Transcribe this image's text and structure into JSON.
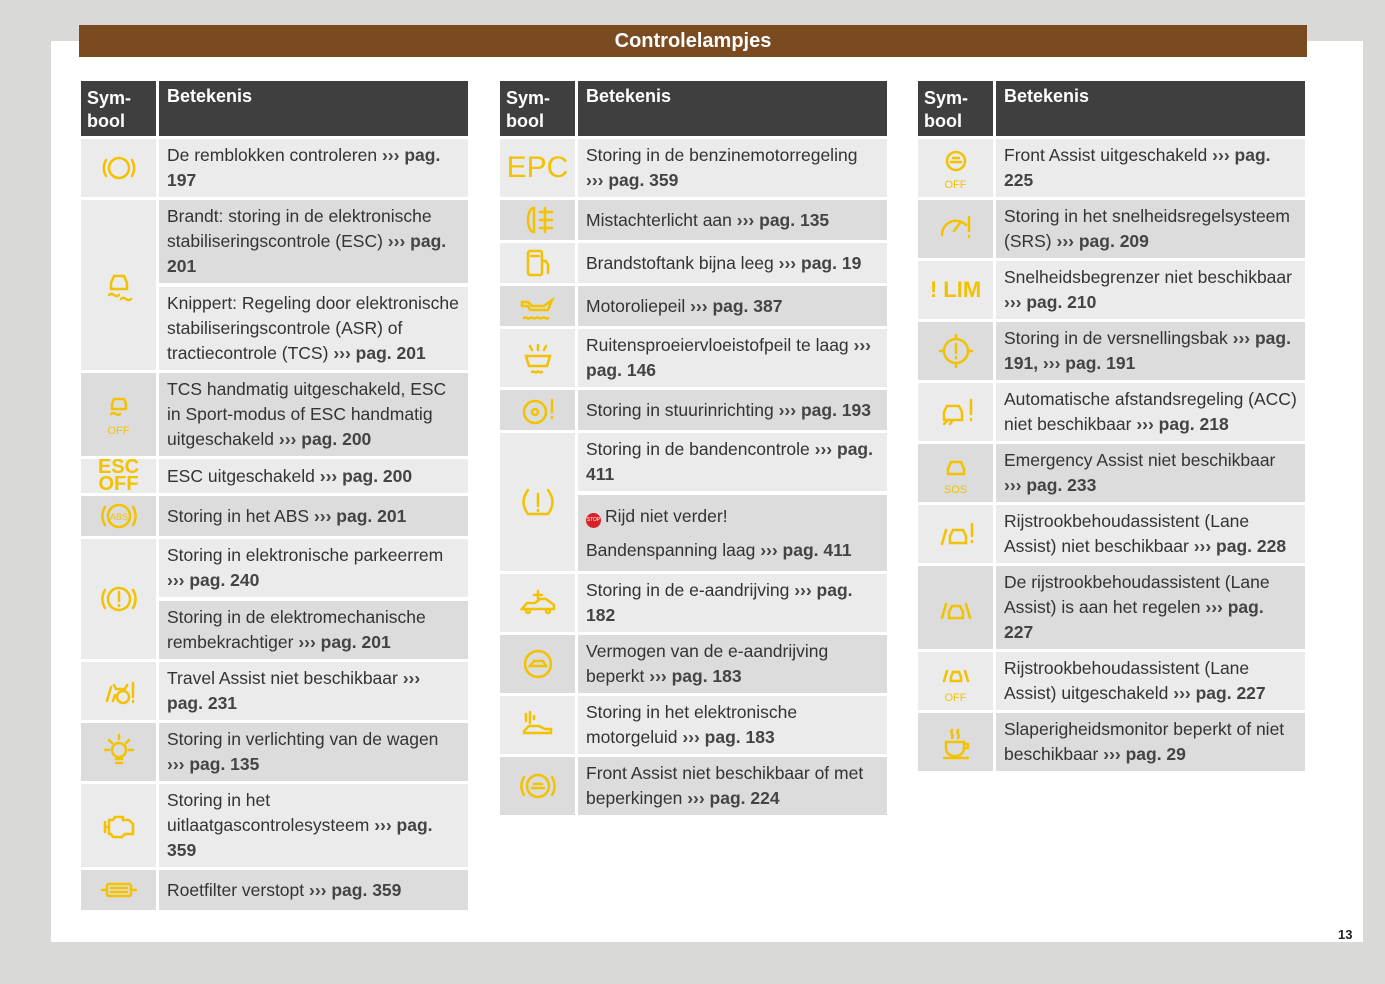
{
  "title": "Controlelampjes",
  "page_number": "13",
  "header": {
    "symbol": "Sym-\nbool",
    "meaning": "Betekenis"
  },
  "icon_color": "#f2c200",
  "columns": [
    [
      {
        "icon": "brake-pads-icon",
        "entries": [
          {
            "text": "De remblokken controleren",
            "ref": "››› pag. 197"
          }
        ]
      },
      {
        "icon": "esc-skid-icon",
        "entries": [
          {
            "text": "Brandt: storing in de elektronische stabiliseringscontrole (ESC)",
            "ref": "››› pag. 201"
          },
          {
            "text": "Knippert: Regeling door elektronische stabiliseringscontrole (ASR) of tractiecontrole (TCS)",
            "ref": "››› pag. 201"
          }
        ]
      },
      {
        "icon": "esc-skid-off-icon",
        "label": "OFF",
        "entries": [
          {
            "text": "TCS handmatig uitgeschakeld, ESC in Sport-modus of ESC handmatig uitgeschakeld",
            "ref": "››› pag. 200"
          }
        ]
      },
      {
        "icon": "esc-off-icon",
        "label": "ESC OFF",
        "entries": [
          {
            "text": "ESC uitgeschakeld",
            "ref": "››› pag. 200"
          }
        ]
      },
      {
        "icon": "abs-icon",
        "label": "ABS",
        "entries": [
          {
            "text": "Storing in het ABS",
            "ref": "››› pag. 201"
          }
        ]
      },
      {
        "icon": "parking-brake-icon",
        "entries": [
          {
            "text": "Storing in elektronische parkeerrem",
            "ref": "››› pag. 240"
          },
          {
            "text": "Storing in de elektromechanische rembekrachtiger",
            "ref": "››› pag. 201"
          }
        ]
      },
      {
        "icon": "travel-assist-icon",
        "entries": [
          {
            "text": "Travel Assist niet beschikbaar",
            "ref": "››› pag. 231"
          }
        ]
      },
      {
        "icon": "bulb-warning-icon",
        "entries": [
          {
            "text": "Storing in verlichting van de wagen",
            "ref": "››› pag. 135"
          }
        ]
      },
      {
        "icon": "engine-icon",
        "entries": [
          {
            "text": "Storing in het uitlaatgascontrolesysteem",
            "ref": "››› pag. 359"
          }
        ]
      },
      {
        "icon": "particulate-filter-icon",
        "entries": [
          {
            "text": "Roetfilter verstopt",
            "ref": "››› pag. 359"
          }
        ]
      }
    ],
    [
      {
        "icon": "epc-icon",
        "label": "EPC",
        "entries": [
          {
            "text": "Storing in de benzinemotorregeling",
            "ref": "››› pag. 359"
          }
        ]
      },
      {
        "icon": "rear-fog-icon",
        "entries": [
          {
            "text": "Mistachterlicht aan",
            "ref": "››› pag. 135"
          }
        ]
      },
      {
        "icon": "fuel-icon",
        "entries": [
          {
            "text": "Brandstoftank bijna leeg",
            "ref": "››› pag. 19"
          }
        ]
      },
      {
        "icon": "oil-icon",
        "entries": [
          {
            "text": "Motoroliepeil",
            "ref": "››› pag. 387"
          }
        ]
      },
      {
        "icon": "washer-fluid-icon",
        "entries": [
          {
            "text": "Ruitensproeiervloeistofpeil te laag",
            "ref": "››› pag. 146"
          }
        ]
      },
      {
        "icon": "steering-icon",
        "entries": [
          {
            "text": "Storing in stuurinrichting",
            "ref": "››› pag. 193"
          }
        ]
      },
      {
        "icon": "tire-pressure-icon",
        "entries": [
          {
            "text": "Storing in de bandencontrole",
            "ref": "››› pag. 411"
          },
          {
            "stop": "STOP",
            "text": "Rijd niet verder!",
            "text2": "Bandenspanning laag",
            "ref": "››› pag. 411"
          }
        ]
      },
      {
        "icon": "e-drive-icon",
        "entries": [
          {
            "text": "Storing in de e-aandrijving",
            "ref": "››› pag. 182"
          }
        ]
      },
      {
        "icon": "e-drive-limited-icon",
        "entries": [
          {
            "text": "Vermogen van de e-aandrijving beperkt",
            "ref": "››› pag. 183"
          }
        ]
      },
      {
        "icon": "engine-sound-icon",
        "entries": [
          {
            "text": "Storing in het elektronische motorgeluid",
            "ref": "››› pag. 183"
          }
        ]
      },
      {
        "icon": "front-assist-icon",
        "entries": [
          {
            "text": "Front Assist niet beschikbaar of met beperkingen",
            "ref": "››› pag. 224"
          }
        ]
      }
    ],
    [
      {
        "icon": "front-assist-off-icon",
        "label": "OFF",
        "entries": [
          {
            "text": "Front Assist uitgeschakeld",
            "ref": "››› pag. 225"
          }
        ]
      },
      {
        "icon": "speed-control-icon",
        "entries": [
          {
            "text": "Storing in het snelheidsregelsysteem (SRS)",
            "ref": "››› pag. 209"
          }
        ]
      },
      {
        "icon": "speed-limiter-icon",
        "label": "! LIM",
        "entries": [
          {
            "text": "Snelheidsbegrenzer niet beschikbaar",
            "ref": "››› pag. 210"
          }
        ]
      },
      {
        "icon": "gearbox-icon",
        "entries": [
          {
            "text": "Storing in de versnellingsbak",
            "ref": "››› pag. 191, ››› pag. 191"
          }
        ]
      },
      {
        "icon": "acc-icon",
        "entries": [
          {
            "text": "Automatische afstandsregeling (ACC) niet beschikbaar",
            "ref": "››› pag. 218"
          }
        ]
      },
      {
        "icon": "emergency-assist-icon",
        "label": "SOS",
        "entries": [
          {
            "text": "Emergency Assist niet beschikbaar",
            "ref": "››› pag. 233"
          }
        ]
      },
      {
        "icon": "lane-assist-warning-icon",
        "entries": [
          {
            "text": "Rijstrookbehoudassistent (Lane Assist) niet beschikbaar",
            "ref": "››› pag. 228"
          }
        ]
      },
      {
        "icon": "lane-assist-icon",
        "entries": [
          {
            "text": "De rijstrookbehoudassistent (Lane Assist) is aan het regelen",
            "ref": "››› pag. 227"
          }
        ]
      },
      {
        "icon": "lane-assist-off-icon",
        "label": "OFF",
        "entries": [
          {
            "text": "Rijstrookbehoudassistent (Lane Assist) uitgeschakeld",
            "ref": "››› pag. 227"
          }
        ]
      },
      {
        "icon": "drowsiness-icon",
        "entries": [
          {
            "text": "Slaperigheidsmonitor beperkt of niet beschikbaar",
            "ref": "››› pag. 29"
          }
        ]
      }
    ]
  ]
}
